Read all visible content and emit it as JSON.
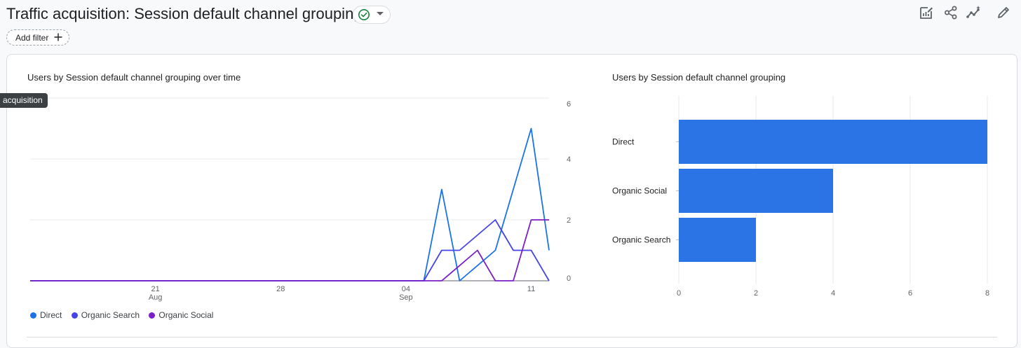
{
  "header": {
    "title": "Traffic acquisition: Session default channel grouping",
    "add_filter_label": "Add filter",
    "tooltip_text": "acquisition"
  },
  "icons": [
    "check-circle-icon",
    "caret-down-icon",
    "plus-icon",
    "customize-report-icon",
    "share-icon",
    "insights-icon",
    "edit-icon"
  ],
  "colors": {
    "direct": "#1a73e8",
    "organic_search": "#4545e6",
    "organic_social": "#7b1fc8",
    "bar": "#2b74e6"
  },
  "legend": [
    {
      "label": "Direct",
      "color": "#1a73e8"
    },
    {
      "label": "Organic Search",
      "color": "#4545e6"
    },
    {
      "label": "Organic Social",
      "color": "#7b1fc8"
    }
  ],
  "chart_data": [
    {
      "type": "line",
      "title": "Users by Session default channel grouping over time",
      "x_tick_labels": [
        [
          "21",
          "Aug"
        ],
        [
          "28",
          ""
        ],
        [
          "04",
          "Sep"
        ],
        [
          "11",
          ""
        ]
      ],
      "x_tick_dates": [
        "2023-08-21",
        "2023-08-28",
        "2023-09-04",
        "2023-09-11"
      ],
      "y_ticks": [
        "6",
        "4",
        "2",
        "0"
      ],
      "ylim": [
        0,
        6
      ],
      "xlim": [
        "2023-08-14",
        "2023-09-12"
      ],
      "grid": true,
      "legend_position": "bottom-left",
      "series": [
        {
          "name": "Direct",
          "color": "#1a73e8",
          "points": [
            [
              "2023-08-14",
              0
            ],
            [
              "2023-09-05",
              0
            ],
            [
              "2023-09-06",
              3
            ],
            [
              "2023-09-07",
              0
            ],
            [
              "2023-09-08",
              0.5
            ],
            [
              "2023-09-09",
              1
            ],
            [
              "2023-09-11",
              5
            ],
            [
              "2023-09-12",
              1
            ]
          ]
        },
        {
          "name": "Organic Search",
          "color": "#4545e6",
          "points": [
            [
              "2023-08-14",
              0
            ],
            [
              "2023-09-05",
              0
            ],
            [
              "2023-09-06",
              1
            ],
            [
              "2023-09-07",
              1
            ],
            [
              "2023-09-09",
              2
            ],
            [
              "2023-09-10",
              1
            ],
            [
              "2023-09-11",
              1
            ],
            [
              "2023-09-12",
              0
            ]
          ]
        },
        {
          "name": "Organic Social",
          "color": "#7b1fc8",
          "points": [
            [
              "2023-08-14",
              0
            ],
            [
              "2023-09-06",
              0
            ],
            [
              "2023-09-07",
              0.5
            ],
            [
              "2023-09-08",
              1
            ],
            [
              "2023-09-09",
              0
            ],
            [
              "2023-09-10",
              0
            ],
            [
              "2023-09-11",
              2
            ],
            [
              "2023-09-12",
              2
            ]
          ]
        }
      ]
    },
    {
      "type": "bar",
      "orientation": "horizontal",
      "title": "Users by Session default channel grouping",
      "categories": [
        "Direct",
        "Organic Social",
        "Organic Search"
      ],
      "values": [
        8,
        4,
        2
      ],
      "xlim": [
        0,
        8
      ],
      "x_ticks": [
        "0",
        "2",
        "4",
        "6",
        "8"
      ],
      "grid": true
    }
  ]
}
